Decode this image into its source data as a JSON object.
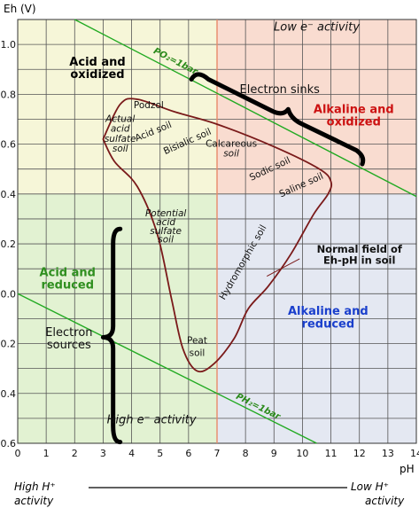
{
  "chart_data": {
    "type": "line",
    "title": "",
    "xlabel": "pH",
    "ylabel": "Eh (V)",
    "xlim": [
      0,
      14
    ],
    "ylim": [
      -0.6,
      1.1
    ],
    "x_ticks": [
      "0",
      "1",
      "2",
      "3",
      "4",
      "5",
      "6",
      "7",
      "8",
      "9",
      "10",
      "11",
      "12",
      "13",
      "14"
    ],
    "y_ticks": [
      "1.0",
      "0.8",
      "0.6",
      "0.4",
      "0.2",
      "0.0",
      "-0.2",
      "-0.4",
      "-0.6"
    ],
    "y_tick_values": [
      1.0,
      0.8,
      0.6,
      0.4,
      0.2,
      0.0,
      -0.2,
      -0.4,
      -0.6
    ],
    "grid": true,
    "regions": [
      {
        "label": "Acid and oxidized",
        "color": "#f6f6d8",
        "x": [
          0,
          7
        ],
        "y": [
          0.4,
          1.1
        ],
        "text_color": "#000000"
      },
      {
        "label": "Alkaline and oxidized",
        "color": "#f9dcd0",
        "x": [
          7,
          14
        ],
        "y": [
          0.4,
          1.1
        ],
        "text_color": "#cc1111"
      },
      {
        "label": "Acid and reduced",
        "color": "#e2f2d2",
        "x": [
          0,
          7
        ],
        "y": [
          -0.6,
          0.4
        ],
        "text_color": "#2f8f1f"
      },
      {
        "label": "Alkaline and reduced",
        "color": "#e4e8f2",
        "x": [
          7,
          14
        ],
        "y": [
          -0.6,
          0.4
        ],
        "text_color": "#1a3fcc"
      }
    ],
    "boundary_lines": [
      {
        "name": "PO₂=1bar",
        "points": [
          [
            2,
            1.1
          ],
          [
            14,
            0.39
          ]
        ],
        "color": "#22aa22"
      },
      {
        "name": "PH₂=1bar",
        "points": [
          [
            0,
            0.0
          ],
          [
            10.5,
            -0.6
          ]
        ],
        "color": "#22aa22"
      }
    ],
    "divider": {
      "x": 7,
      "color": "#e88a6a"
    },
    "normal_field": {
      "label": "Normal field of Eh-pH in soil",
      "color": "#7a1a1a",
      "points": [
        [
          3.0,
          0.62
        ],
        [
          3.6,
          0.76
        ],
        [
          4.2,
          0.78
        ],
        [
          5.5,
          0.73
        ],
        [
          7.0,
          0.68
        ],
        [
          9.0,
          0.59
        ],
        [
          10.6,
          0.5
        ],
        [
          11.0,
          0.45
        ],
        [
          10.9,
          0.4
        ],
        [
          10.4,
          0.32
        ],
        [
          9.6,
          0.16
        ],
        [
          8.8,
          0.03
        ],
        [
          8.1,
          -0.06
        ],
        [
          7.6,
          -0.18
        ],
        [
          6.9,
          -0.28
        ],
        [
          6.3,
          -0.31
        ],
        [
          5.8,
          -0.22
        ],
        [
          5.4,
          -0.02
        ],
        [
          4.9,
          0.24
        ],
        [
          4.2,
          0.43
        ],
        [
          3.4,
          0.53
        ],
        [
          3.0,
          0.62
        ]
      ]
    },
    "soils": [
      {
        "label": "Podzol",
        "x": 4.6,
        "y": 0.745
      },
      {
        "label": "Actual",
        "x": 3.6,
        "y": 0.69
      },
      {
        "label": "acid",
        "x": 3.6,
        "y": 0.65
      },
      {
        "label": "sulfate",
        "x": 3.6,
        "y": 0.61
      },
      {
        "label": "soil",
        "x": 3.6,
        "y": 0.57
      },
      {
        "label": "Acid soil",
        "x": 4.8,
        "y": 0.64,
        "rotate": -22
      },
      {
        "label": "Bisialic soil",
        "x": 6.0,
        "y": 0.6,
        "rotate": -24
      },
      {
        "label": "Calcareous",
        "x": 7.5,
        "y": 0.59
      },
      {
        "label": "soil",
        "x": 7.5,
        "y": 0.55
      },
      {
        "label": "Sodic soil",
        "x": 8.9,
        "y": 0.49,
        "rotate": -25
      },
      {
        "label": "Saline soil",
        "x": 10.0,
        "y": 0.425,
        "rotate": -24
      },
      {
        "label": "Potential",
        "x": 5.2,
        "y": 0.31
      },
      {
        "label": "acid",
        "x": 5.2,
        "y": 0.275
      },
      {
        "label": "sulfate",
        "x": 5.2,
        "y": 0.24
      },
      {
        "label": "soil",
        "x": 5.2,
        "y": 0.205
      },
      {
        "label": "Hydromorphic soil",
        "x": 8.0,
        "y": 0.12,
        "rotate": -60
      },
      {
        "label": "Peat",
        "x": 6.3,
        "y": -0.2
      },
      {
        "label": "soil",
        "x": 6.3,
        "y": -0.25
      }
    ],
    "annotations": {
      "low_e": "Low e⁻ activity",
      "high_e": "High e⁻ activity",
      "electron_sinks": "Electron sinks",
      "electron_sources_1": "Electron",
      "electron_sources_2": "sources",
      "acid_ox_1": "Acid and",
      "acid_ox_2": "oxidized",
      "alk_ox_1": "Alkaline and",
      "alk_ox_2": "oxidized",
      "acid_red_1": "Acid and",
      "acid_red_2": "reduced",
      "alk_red_1": "Alkaline and",
      "alk_red_2": "reduced",
      "normal_1": "Normal field of",
      "normal_2": "Eh-pH in soil",
      "po2": "PO₂=1bar",
      "ph2": "PH₂=1bar"
    },
    "bottom_left_1": "High H⁺",
    "bottom_left_2": "activity",
    "bottom_right_1": "Low H⁺",
    "bottom_right_2": "activity"
  }
}
